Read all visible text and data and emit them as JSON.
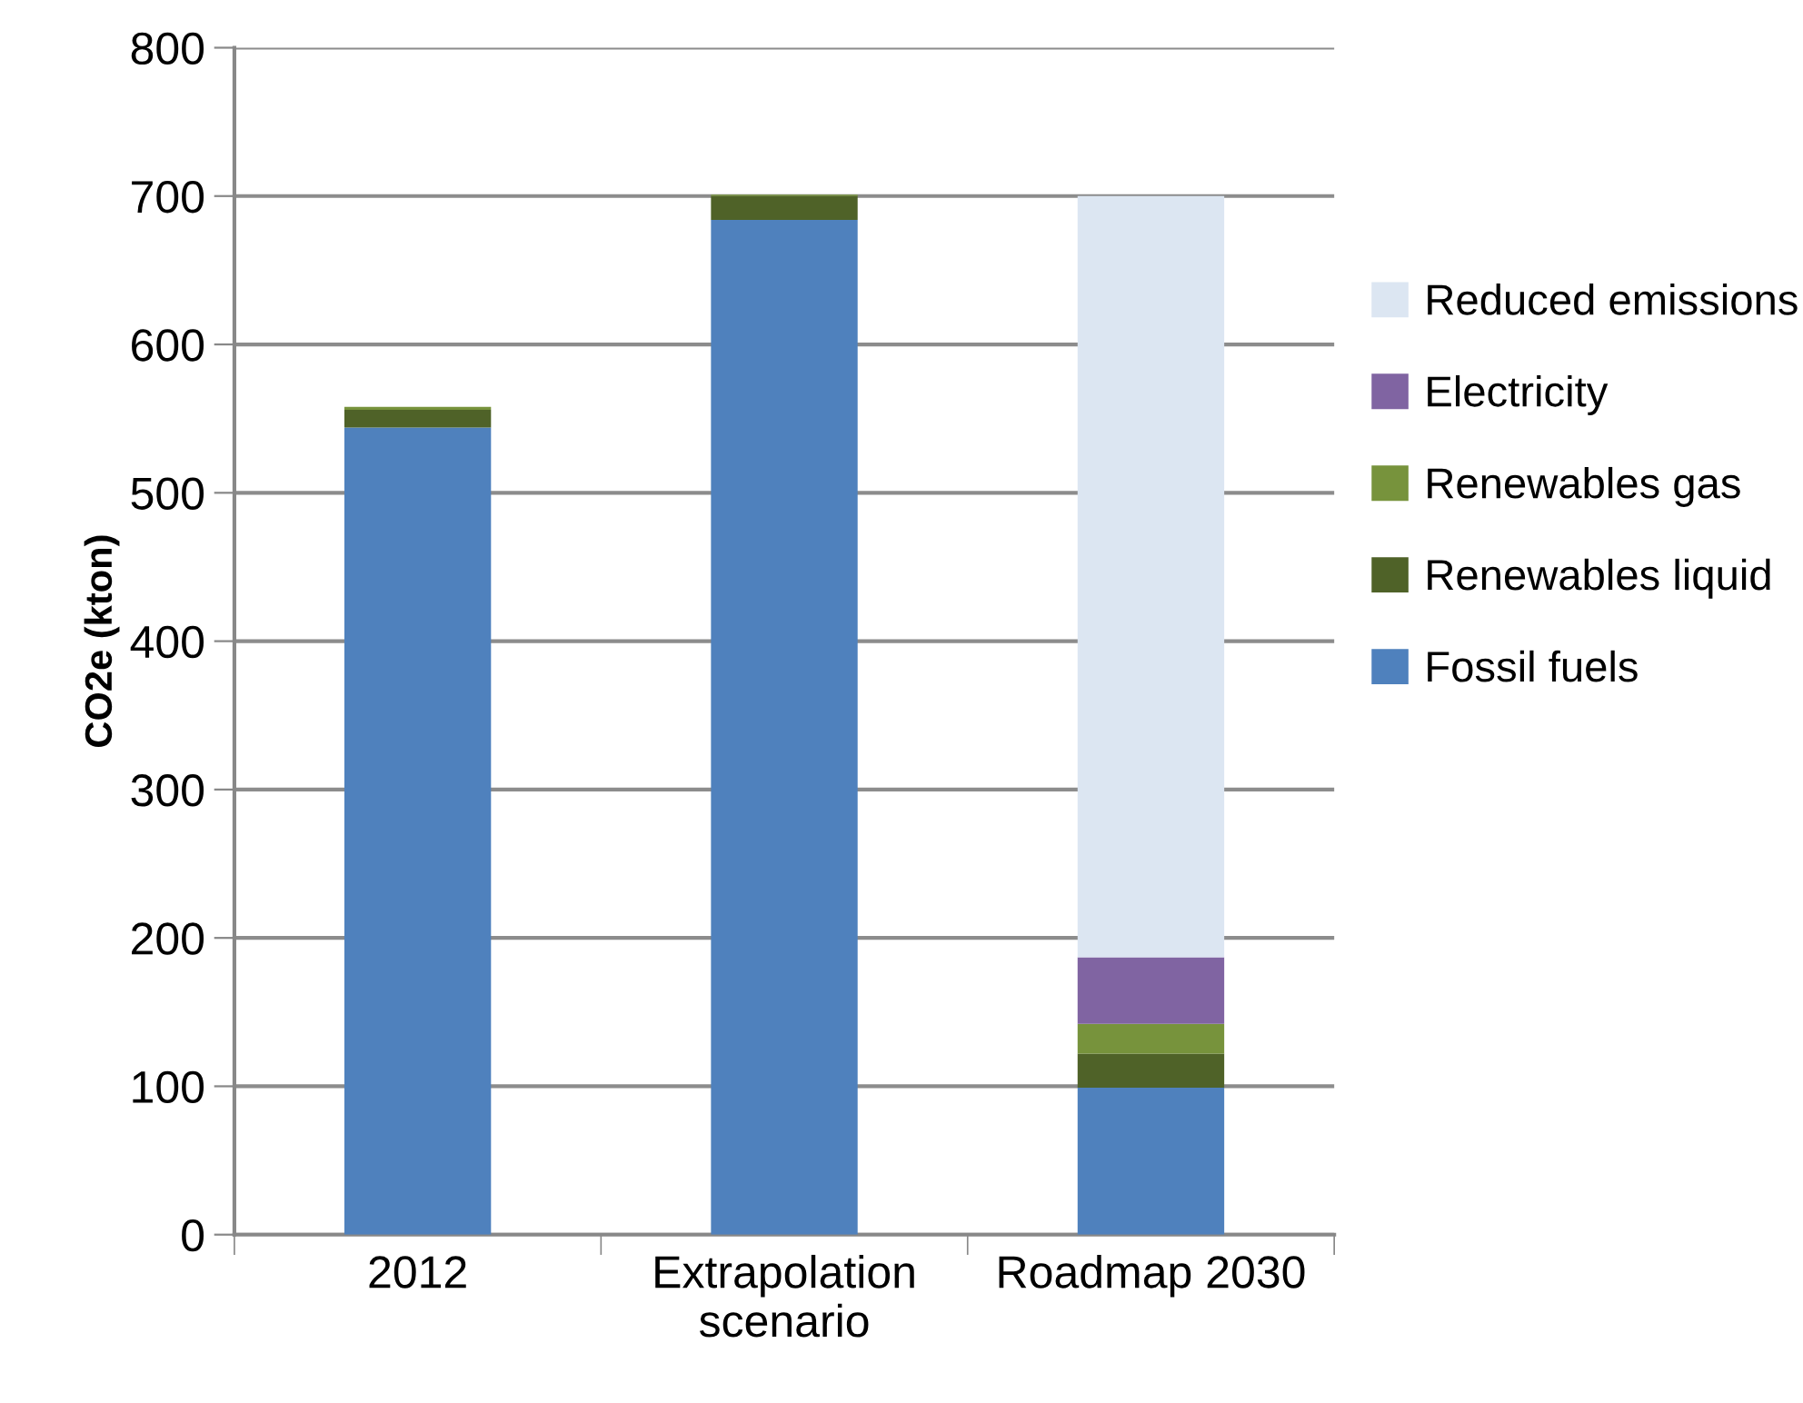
{
  "chart_data": {
    "type": "bar",
    "stacked": true,
    "ylabel": "CO2e (kton)",
    "categories": [
      "2012",
      "Extrapolation\nscenario",
      "Roadmap 2030"
    ],
    "series": [
      {
        "name": "Fossil fuels",
        "color": "#4f81bd",
        "values": [
          544,
          684,
          99
        ]
      },
      {
        "name": "Renewables liquid",
        "color": "#4f6228",
        "values": [
          12,
          16,
          23
        ]
      },
      {
        "name": "Renewables gas",
        "color": "#77933c",
        "values": [
          2,
          1,
          20
        ]
      },
      {
        "name": "Electricity",
        "color": "#8064a2",
        "values": [
          null,
          null,
          45
        ]
      },
      {
        "name": "Reduced emissions",
        "color": "#dce6f2",
        "values": [
          null,
          null,
          513
        ]
      }
    ],
    "ylim": [
      0,
      800
    ],
    "yticks": [
      0,
      100,
      200,
      300,
      400,
      500,
      600,
      700,
      800
    ],
    "grid": "y",
    "legend": "right"
  }
}
